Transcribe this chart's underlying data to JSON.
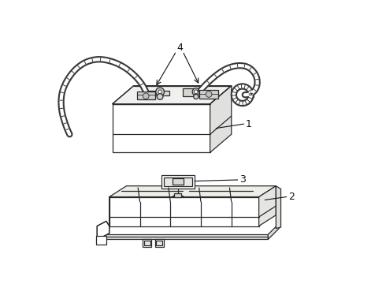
{
  "background_color": "#ffffff",
  "line_color": "#2a2a2a",
  "label_color": "#111111",
  "figsize": [
    4.9,
    3.6
  ],
  "dpi": 100,
  "label_fontsize": 9,
  "lw": 0.9
}
